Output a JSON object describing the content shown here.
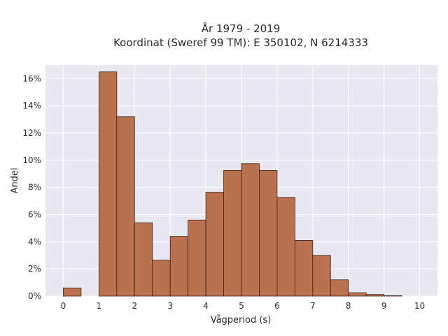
{
  "chart_data": {
    "type": "bar",
    "title_line1": "År 1979 - 2019",
    "title_line2": "Koordinat (Sweref 99 TM): E 350102, N 6214333",
    "xlabel": "Vågperiod (s)",
    "ylabel": "Andel",
    "xlim": [
      -0.5,
      10.5
    ],
    "ylim": [
      0,
      17
    ],
    "x_ticks": [
      "0",
      "1",
      "2",
      "3",
      "4",
      "5",
      "6",
      "7",
      "8",
      "9",
      "10"
    ],
    "y_ticks": [
      "0%",
      "2%",
      "4%",
      "6%",
      "8%",
      "10%",
      "12%",
      "14%",
      "16%"
    ],
    "bin_width": 0.5,
    "bins": [
      {
        "x0": 0.0,
        "value": 0.6
      },
      {
        "x0": 1.0,
        "value": 16.5
      },
      {
        "x0": 1.5,
        "value": 13.2
      },
      {
        "x0": 2.0,
        "value": 5.4
      },
      {
        "x0": 2.5,
        "value": 2.65
      },
      {
        "x0": 3.0,
        "value": 4.4
      },
      {
        "x0": 3.5,
        "value": 5.6
      },
      {
        "x0": 4.0,
        "value": 7.65
      },
      {
        "x0": 4.5,
        "value": 9.25
      },
      {
        "x0": 5.0,
        "value": 9.75
      },
      {
        "x0": 5.5,
        "value": 9.25
      },
      {
        "x0": 6.0,
        "value": 7.25
      },
      {
        "x0": 6.5,
        "value": 4.1
      },
      {
        "x0": 7.0,
        "value": 3.0
      },
      {
        "x0": 7.5,
        "value": 1.2
      },
      {
        "x0": 8.0,
        "value": 0.25
      },
      {
        "x0": 8.5,
        "value": 0.12
      },
      {
        "x0": 9.0,
        "value": 0.03
      }
    ],
    "bar_color": "#b9714f",
    "bar_edge_color": "#3b2418",
    "plot_bg": "#e8e8f0",
    "grid": true,
    "grid_color": "#ffffff"
  }
}
